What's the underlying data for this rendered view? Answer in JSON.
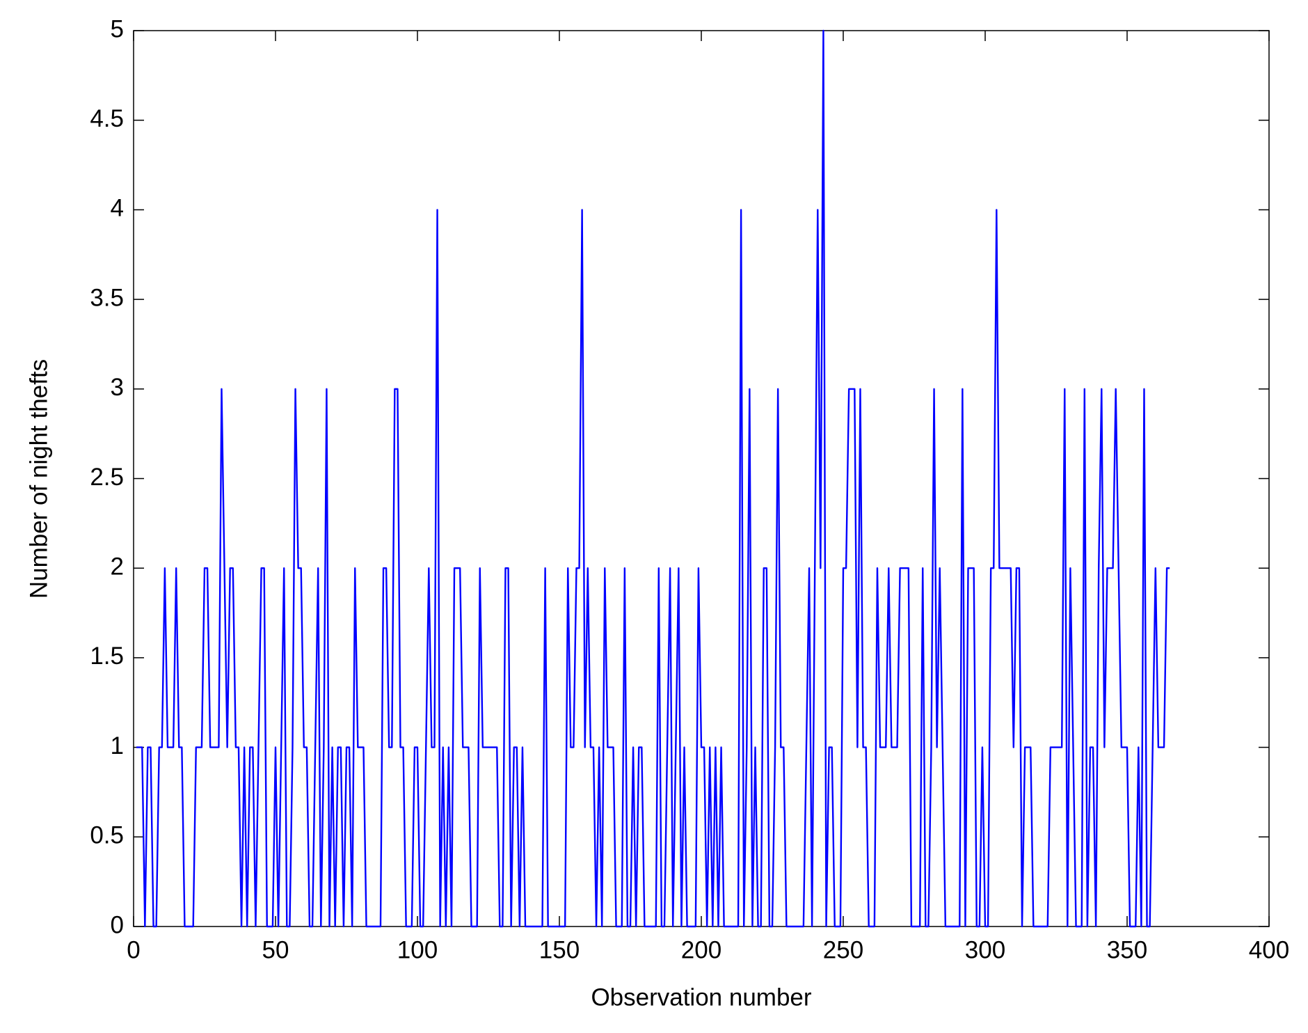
{
  "chart_data": {
    "type": "line",
    "xlabel": "Observation number",
    "ylabel": "Number of night thefts",
    "xlim": [
      0,
      400
    ],
    "xticks": [
      0,
      50,
      100,
      150,
      200,
      250,
      300,
      350,
      400
    ],
    "ylim": [
      0,
      5
    ],
    "yticks": [
      0,
      0.5,
      1,
      1.5,
      2,
      2.5,
      3,
      3.5,
      4,
      4.5,
      5
    ],
    "grid": false,
    "x": [
      1,
      2,
      3,
      4,
      5,
      6,
      7,
      8,
      9,
      10,
      11,
      12,
      13,
      14,
      15,
      16,
      17,
      18,
      19,
      20,
      21,
      22,
      23,
      24,
      25,
      26,
      27,
      28,
      29,
      30,
      31,
      32,
      33,
      34,
      35,
      36,
      37,
      38,
      39,
      40,
      41,
      42,
      43,
      44,
      45,
      46,
      47,
      48,
      49,
      50,
      51,
      52,
      53,
      54,
      55,
      56,
      57,
      58,
      59,
      60,
      61,
      62,
      63,
      64,
      65,
      66,
      67,
      68,
      69,
      70,
      71,
      72,
      73,
      74,
      75,
      76,
      77,
      78,
      79,
      80,
      81,
      82,
      83,
      84,
      85,
      86,
      87,
      88,
      89,
      90,
      91,
      92,
      93,
      94,
      95,
      96,
      97,
      98,
      99,
      100,
      101,
      102,
      103,
      104,
      105,
      106,
      107,
      108,
      109,
      110,
      111,
      112,
      113,
      114,
      115,
      116,
      117,
      118,
      119,
      120,
      121,
      122,
      123,
      124,
      125,
      126,
      127,
      128,
      129,
      130,
      131,
      132,
      133,
      134,
      135,
      136,
      137,
      138,
      139,
      140,
      141,
      142,
      143,
      144,
      145,
      146,
      147,
      148,
      149,
      150,
      151,
      152,
      153,
      154,
      155,
      156,
      157,
      158,
      159,
      160,
      161,
      162,
      163,
      164,
      165,
      166,
      167,
      168,
      169,
      170,
      171,
      172,
      173,
      174,
      175,
      176,
      177,
      178,
      179,
      180,
      181,
      182,
      183,
      184,
      185,
      186,
      187,
      188,
      189,
      190,
      191,
      192,
      193,
      194,
      195,
      196,
      197,
      198,
      199,
      200,
      201,
      202,
      203,
      204,
      205,
      206,
      207,
      208,
      209,
      210,
      211,
      212,
      213,
      214,
      215,
      216,
      217,
      218,
      219,
      220,
      221,
      222,
      223,
      224,
      225,
      226,
      227,
      228,
      229,
      230,
      231,
      232,
      233,
      234,
      235,
      236,
      237,
      238,
      239,
      240,
      241,
      242,
      243,
      244,
      245,
      246,
      247,
      248,
      249,
      250,
      251,
      252,
      253,
      254,
      255,
      256,
      257,
      258,
      259,
      260,
      261,
      262,
      263,
      264,
      265,
      266,
      267,
      268,
      269,
      270,
      271,
      272,
      273,
      274,
      275,
      276,
      277,
      278,
      279,
      280,
      281,
      282,
      283,
      284,
      285,
      286,
      287,
      288,
      289,
      290,
      291,
      292,
      293,
      294,
      295,
      296,
      297,
      298,
      299,
      300,
      301,
      302,
      303,
      304,
      305,
      306,
      307,
      308,
      309,
      310,
      311,
      312,
      313,
      314,
      315,
      316,
      317,
      318,
      319,
      320,
      321,
      322,
      323,
      324,
      325,
      326,
      327,
      328,
      329,
      330,
      331,
      332,
      333,
      334,
      335,
      336,
      337,
      338,
      339,
      340,
      341,
      342,
      343,
      344,
      345,
      346,
      347,
      348,
      349,
      350,
      351,
      352,
      353,
      354,
      355,
      356,
      357,
      358,
      359,
      360,
      361,
      362,
      363,
      364,
      365
    ],
    "series": [
      {
        "color": "#0000ff",
        "values": [
          1,
          1,
          1,
          0,
          1,
          1,
          0,
          0,
          1,
          1,
          2,
          1,
          1,
          1,
          2,
          1,
          1,
          0,
          0,
          0,
          0,
          1,
          1,
          1,
          2,
          2,
          1,
          1,
          1,
          1,
          3,
          2,
          1,
          2,
          2,
          1,
          1,
          0,
          1,
          0,
          1,
          1,
          0,
          1,
          2,
          2,
          0,
          0,
          0,
          1,
          0,
          1,
          2,
          0,
          0,
          1,
          3,
          2,
          2,
          1,
          1,
          0,
          0,
          1,
          2,
          0,
          1,
          3,
          0,
          1,
          0,
          1,
          1,
          0,
          1,
          1,
          0,
          2,
          1,
          1,
          1,
          0,
          0,
          0,
          0,
          0,
          0,
          2,
          2,
          1,
          1,
          3,
          3,
          1,
          1,
          0,
          0,
          0,
          1,
          1,
          0,
          0,
          1,
          2,
          1,
          1,
          4,
          0,
          1,
          0,
          1,
          0,
          2,
          2,
          2,
          1,
          1,
          1,
          0,
          0,
          0,
          2,
          1,
          1,
          1,
          1,
          1,
          1,
          0,
          0,
          2,
          2,
          0,
          1,
          1,
          0,
          1,
          0,
          0,
          0,
          0,
          0,
          0,
          0,
          2,
          0,
          0,
          0,
          0,
          0,
          0,
          0,
          2,
          1,
          1,
          2,
          2,
          4,
          1,
          2,
          1,
          1,
          0,
          1,
          0,
          2,
          1,
          1,
          1,
          0,
          0,
          0,
          2,
          0,
          0,
          1,
          0,
          1,
          1,
          0,
          0,
          0,
          0,
          0,
          2,
          0,
          0,
          1,
          2,
          0,
          1,
          2,
          0,
          1,
          0,
          0,
          0,
          0,
          2,
          1,
          1,
          0,
          1,
          0,
          1,
          0,
          1,
          0,
          0,
          0,
          0,
          0,
          0,
          4,
          0,
          1,
          3,
          0,
          1,
          0,
          0,
          2,
          2,
          0,
          0,
          1,
          3,
          1,
          1,
          0,
          0,
          0,
          0,
          0,
          0,
          0,
          1,
          2,
          0,
          2,
          4,
          2,
          5,
          0,
          1,
          1,
          0,
          0,
          0,
          2,
          2,
          3,
          3,
          3,
          1,
          3,
          1,
          1,
          0,
          0,
          0,
          2,
          1,
          1,
          1,
          2,
          1,
          1,
          1,
          2,
          2,
          2,
          2,
          0,
          0,
          0,
          0,
          2,
          0,
          0,
          1,
          3,
          1,
          2,
          1,
          0,
          0,
          0,
          0,
          0,
          0,
          3,
          0,
          2,
          2,
          2,
          0,
          0,
          1,
          0,
          0,
          2,
          2,
          4,
          2,
          2,
          2,
          2,
          2,
          1,
          2,
          2,
          0,
          1,
          1,
          1,
          0,
          0,
          0,
          0,
          0,
          0,
          1,
          1,
          1,
          1,
          1,
          3,
          0,
          2,
          1,
          0,
          0,
          0,
          3,
          0,
          1,
          1,
          0,
          2,
          3,
          1,
          2,
          2,
          2,
          3,
          2,
          1,
          1,
          1,
          0,
          0,
          0,
          1,
          0,
          3,
          0,
          0,
          1,
          2,
          1,
          1,
          1,
          2,
          2
        ]
      }
    ]
  }
}
